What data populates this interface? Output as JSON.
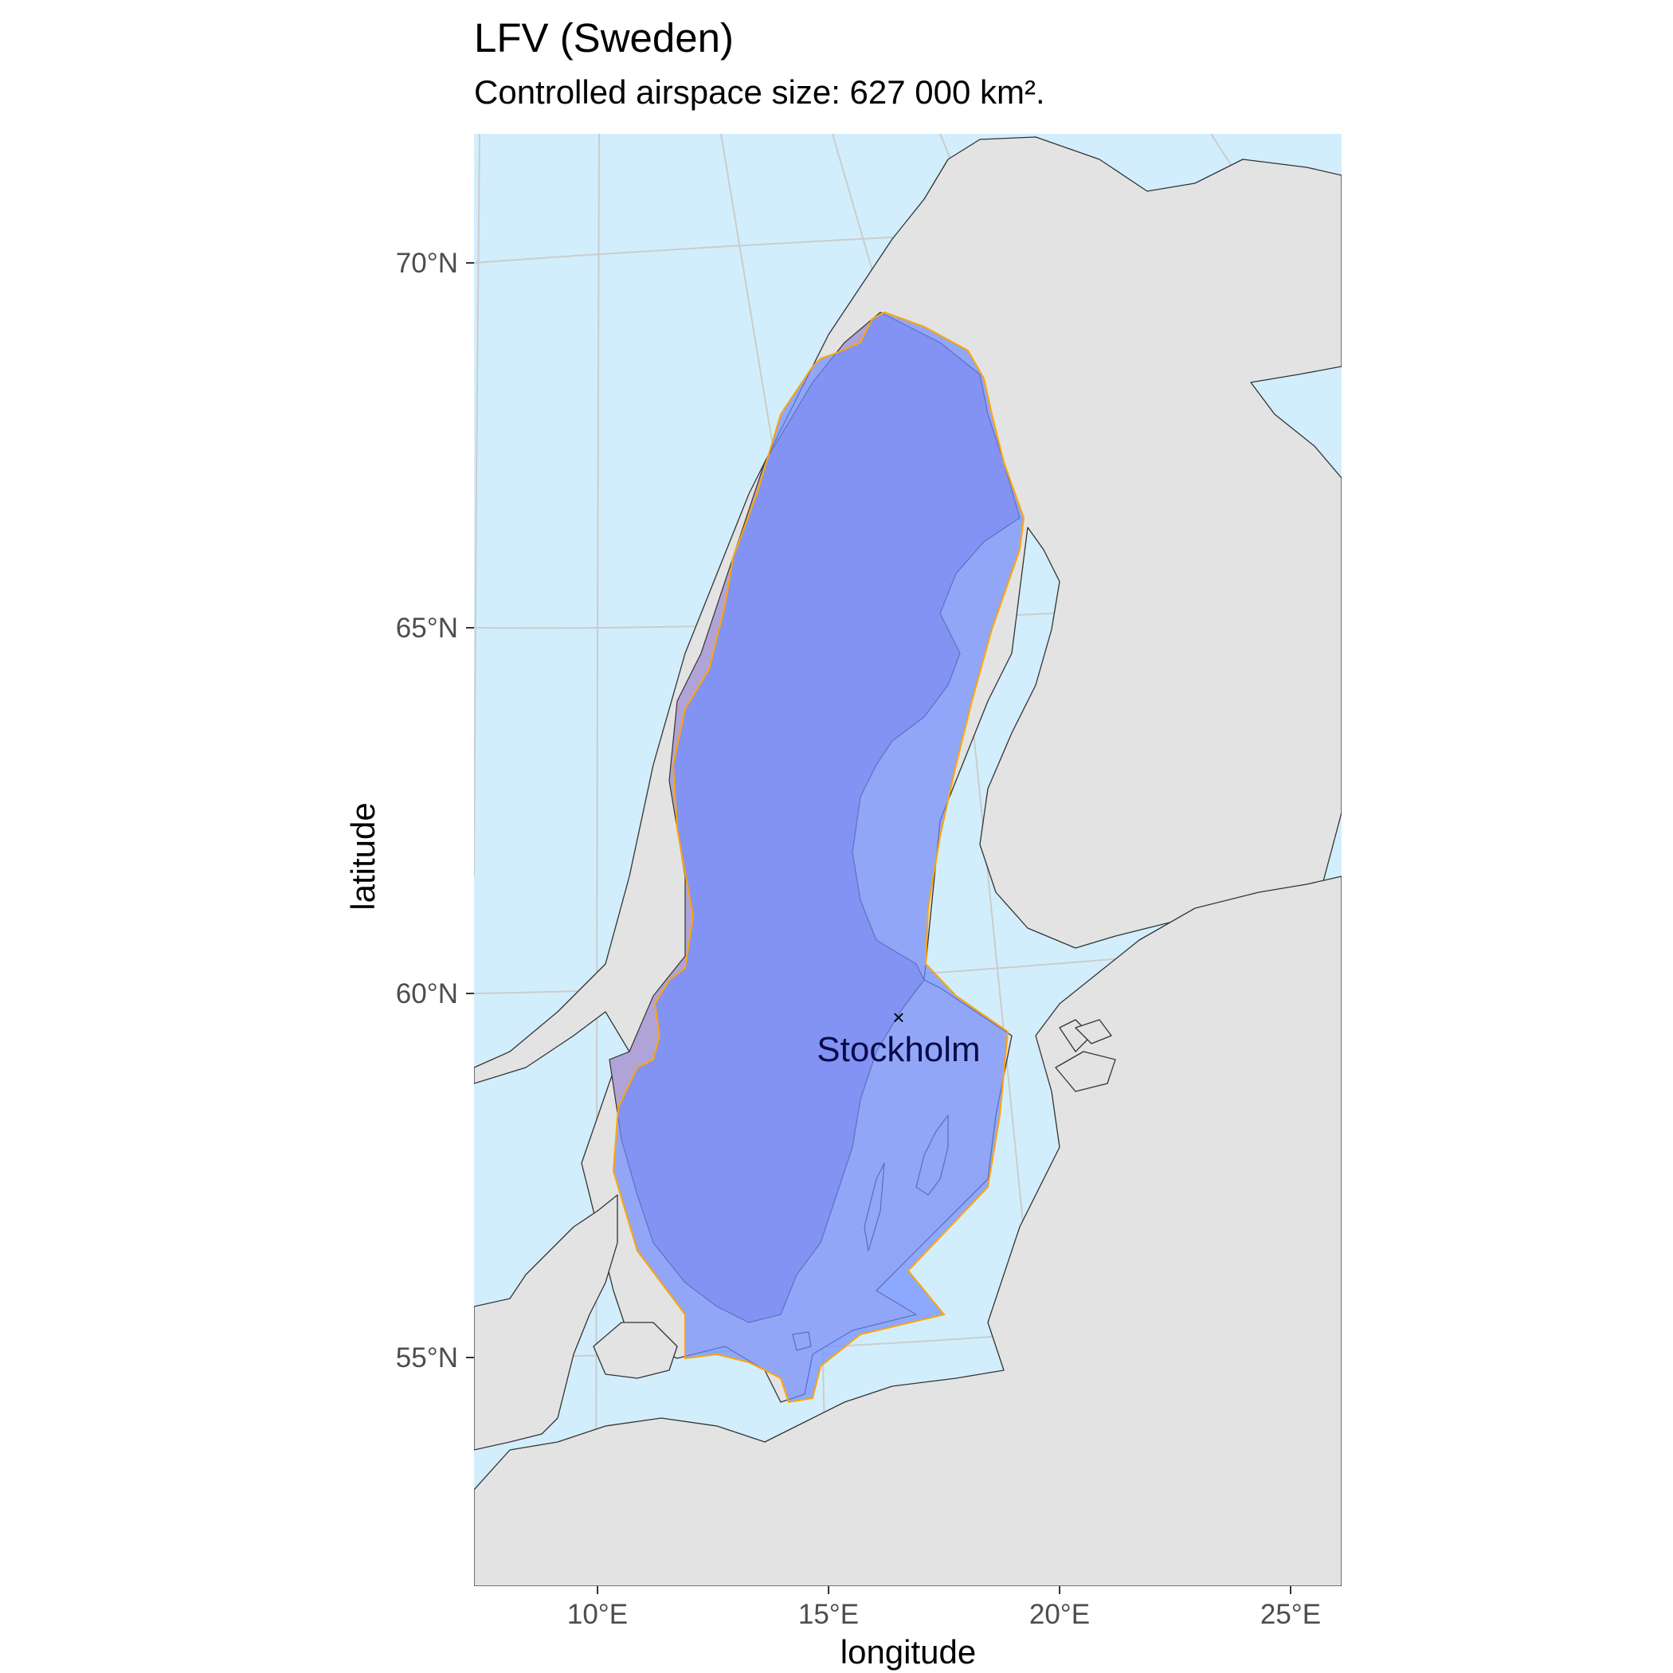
{
  "title": "LFV (Sweden)",
  "subtitle": "Controlled airspace size: 627 000 km².",
  "x_axis": {
    "title": "longitude",
    "ticks": [
      "10°E",
      "15°E",
      "20°E",
      "25°E"
    ]
  },
  "y_axis": {
    "title": "latitude",
    "ticks": [
      "70°N",
      "65°N",
      "60°N",
      "55°N"
    ]
  },
  "city": {
    "name": "Stockholm",
    "marker": "×"
  },
  "colors": {
    "sea": "#d2eefd",
    "land": "#e3e3e3",
    "graticule": "#cccccc",
    "airspace_fill": "#6f8cff",
    "airspace_border": "#ffa500",
    "country_fill": "#b0a3d8",
    "label": "#0b0b4a"
  }
}
